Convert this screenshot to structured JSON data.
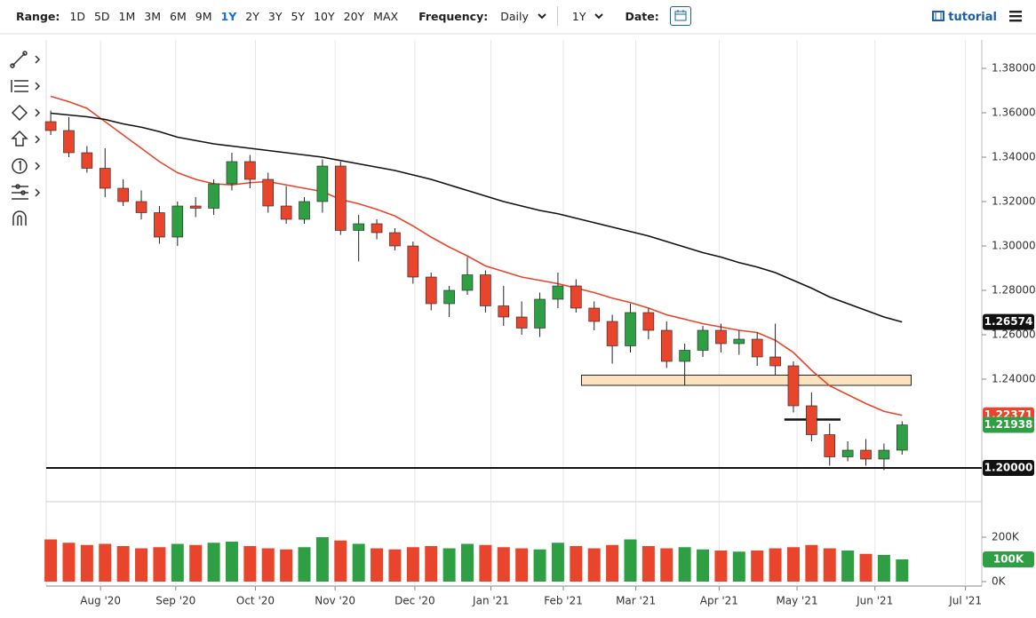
{
  "toolbar": {
    "range_label": "Range:",
    "ranges": [
      "1D",
      "5D",
      "1M",
      "3M",
      "6M",
      "9M",
      "1Y",
      "2Y",
      "3Y",
      "5Y",
      "10Y",
      "20Y",
      "MAX"
    ],
    "active_range": "1Y",
    "frequency_label": "Frequency:",
    "frequency": "Daily",
    "period": "1Y",
    "date_label": "Date:",
    "tutorial": "tutorial"
  },
  "chart_data": [
    {
      "type": "candlestick",
      "categories": [
        null,
        null,
        null,
        null,
        null,
        null,
        null,
        null,
        null,
        null,
        null,
        null,
        null,
        null,
        null,
        null,
        null,
        null,
        null,
        null,
        null,
        null,
        null,
        null,
        null,
        null,
        null,
        null,
        null,
        null,
        null,
        null,
        null,
        null,
        null,
        null,
        null,
        null,
        null,
        null,
        null,
        null,
        null,
        null,
        null,
        null,
        null,
        null
      ],
      "open": [
        1.356,
        1.352,
        1.342,
        1.335,
        1.326,
        1.32,
        1.315,
        1.304,
        1.318,
        1.317,
        1.328,
        1.338,
        1.33,
        1.318,
        1.312,
        1.32,
        1.336,
        1.307,
        1.31,
        1.306,
        1.3,
        1.286,
        1.274,
        1.28,
        1.287,
        1.273,
        1.268,
        1.263,
        1.276,
        1.282,
        1.272,
        1.266,
        1.255,
        1.27,
        1.262,
        1.248,
        1.253,
        1.262,
        1.256,
        1.258,
        1.25,
        1.246,
        1.228,
        1.215,
        1.205,
        1.208,
        1.204,
        1.208
      ],
      "high": [
        1.361,
        1.358,
        1.345,
        1.344,
        1.33,
        1.325,
        1.318,
        1.32,
        1.322,
        1.33,
        1.342,
        1.341,
        1.333,
        1.327,
        1.322,
        1.339,
        1.338,
        1.314,
        1.312,
        1.308,
        1.302,
        1.288,
        1.282,
        1.295,
        1.289,
        1.282,
        1.275,
        1.279,
        1.288,
        1.285,
        1.275,
        1.269,
        1.274,
        1.272,
        1.266,
        1.256,
        1.264,
        1.265,
        1.262,
        1.261,
        1.265,
        1.248,
        1.234,
        1.22,
        1.212,
        1.213,
        1.211,
        1.221
      ],
      "low": [
        1.35,
        1.34,
        1.333,
        1.322,
        1.318,
        1.312,
        1.301,
        1.3,
        1.313,
        1.314,
        1.325,
        1.326,
        1.315,
        1.31,
        1.31,
        1.315,
        1.305,
        1.293,
        1.303,
        1.298,
        1.283,
        1.271,
        1.268,
        1.278,
        1.27,
        1.264,
        1.26,
        1.259,
        1.272,
        1.27,
        1.262,
        1.247,
        1.252,
        1.258,
        1.245,
        1.237,
        1.25,
        1.252,
        1.251,
        1.246,
        1.242,
        1.225,
        1.212,
        1.201,
        1.203,
        1.201,
        1.199,
        1.206
      ],
      "close": [
        1.352,
        1.342,
        1.335,
        1.326,
        1.32,
        1.315,
        1.304,
        1.318,
        1.317,
        1.328,
        1.338,
        1.33,
        1.318,
        1.312,
        1.32,
        1.336,
        1.307,
        1.31,
        1.306,
        1.3,
        1.286,
        1.274,
        1.28,
        1.287,
        1.273,
        1.268,
        1.263,
        1.276,
        1.282,
        1.272,
        1.266,
        1.255,
        1.27,
        1.262,
        1.248,
        1.253,
        1.262,
        1.256,
        1.258,
        1.25,
        1.246,
        1.228,
        1.215,
        1.205,
        1.208,
        1.204,
        1.208,
        1.21938
      ],
      "last_label": "1.21938",
      "up_color": "#2ea043",
      "down_color": "#e8452c",
      "lines": [
        {
          "color": "#e8452c",
          "last_label": "1.22371",
          "values": [
            1.3674,
            1.365,
            1.362,
            1.356,
            1.35,
            1.344,
            1.338,
            1.333,
            1.33,
            1.328,
            1.3275,
            1.3285,
            1.329,
            1.3275,
            1.326,
            1.3245,
            1.321,
            1.319,
            1.3165,
            1.3135,
            1.309,
            1.304,
            1.2995,
            1.2955,
            1.291,
            1.2885,
            1.286,
            1.2845,
            1.283,
            1.281,
            1.279,
            1.2765,
            1.2745,
            1.272,
            1.269,
            1.267,
            1.265,
            1.2635,
            1.262,
            1.261,
            1.2575,
            1.252,
            1.244,
            1.237,
            1.233,
            1.229,
            1.2255,
            1.22371
          ]
        },
        {
          "color": "#111111",
          "last_label": "1.26574",
          "values": [
            1.3598,
            1.359,
            1.3582,
            1.357,
            1.355,
            1.3535,
            1.3515,
            1.349,
            1.3475,
            1.346,
            1.345,
            1.344,
            1.343,
            1.342,
            1.341,
            1.34,
            1.3385,
            1.337,
            1.3355,
            1.334,
            1.332,
            1.33,
            1.3275,
            1.325,
            1.3225,
            1.32,
            1.318,
            1.316,
            1.3145,
            1.3125,
            1.3105,
            1.3085,
            1.3065,
            1.3045,
            1.302,
            1.2995,
            1.297,
            1.295,
            1.2925,
            1.2905,
            1.288,
            1.2845,
            1.281,
            1.277,
            1.274,
            1.271,
            1.268,
            1.26574
          ]
        }
      ],
      "hline": {
        "value": 1.2,
        "label": "1.20000",
        "color": "#111111"
      },
      "zone": {
        "low": 1.2372,
        "high": 1.2418,
        "x": [
          29.3,
          47.5
        ],
        "color": "#fbe3c0"
      },
      "segment": {
        "value": 1.2218,
        "x": [
          40.5,
          43.6
        ],
        "color": "#111111"
      },
      "xlim": [
        -0.25,
        51.4
      ],
      "ylim": [
        1.1948,
        1.3928
      ],
      "yticks": [
        {
          "value": 1.24,
          "label": "1.24000"
        },
        {
          "value": 1.26,
          "label": "1.26000"
        },
        {
          "value": 1.28,
          "label": "1.28000"
        },
        {
          "value": 1.3,
          "label": "1.30000"
        },
        {
          "value": 1.32,
          "label": "1.32000"
        },
        {
          "value": 1.34,
          "label": "1.34000"
        },
        {
          "value": 1.36,
          "label": "1.36000"
        },
        {
          "value": 1.38,
          "label": "1.38000"
        }
      ]
    },
    {
      "type": "bar",
      "values": [
        190000,
        175000,
        165000,
        170000,
        160000,
        150000,
        155000,
        170000,
        165000,
        175000,
        180000,
        160000,
        150000,
        145000,
        155000,
        200000,
        185000,
        170000,
        150000,
        145000,
        155000,
        160000,
        150000,
        170000,
        165000,
        155000,
        150000,
        145000,
        175000,
        160000,
        150000,
        165000,
        190000,
        160000,
        150000,
        155000,
        145000,
        140000,
        135000,
        140000,
        150000,
        155000,
        165000,
        150000,
        140000,
        125000,
        120000,
        100000
      ],
      "last_label": "100K",
      "xlim": [
        -0.25,
        51.4
      ],
      "ylim": [
        0,
        348000
      ],
      "yticks": [
        {
          "value": 0,
          "label": "0K"
        },
        {
          "value": 200000,
          "label": "200K"
        }
      ],
      "xticks": [
        {
          "value": 2.75,
          "label": "Aug '20"
        },
        {
          "value": 6.9,
          "label": "Sep '20"
        },
        {
          "value": 11.3,
          "label": "Oct '20"
        },
        {
          "value": 15.7,
          "label": "Nov '20"
        },
        {
          "value": 20.1,
          "label": "Dec '20"
        },
        {
          "value": 24.3,
          "label": "Jan '21"
        },
        {
          "value": 28.3,
          "label": "Feb '21"
        },
        {
          "value": 32.3,
          "label": "Mar '21"
        },
        {
          "value": 36.9,
          "label": "Apr '21"
        },
        {
          "value": 41.2,
          "label": "May '21"
        },
        {
          "value": 45.5,
          "label": "Jun '21"
        },
        {
          "value": 50.5,
          "label": "Jul '21"
        }
      ]
    }
  ]
}
